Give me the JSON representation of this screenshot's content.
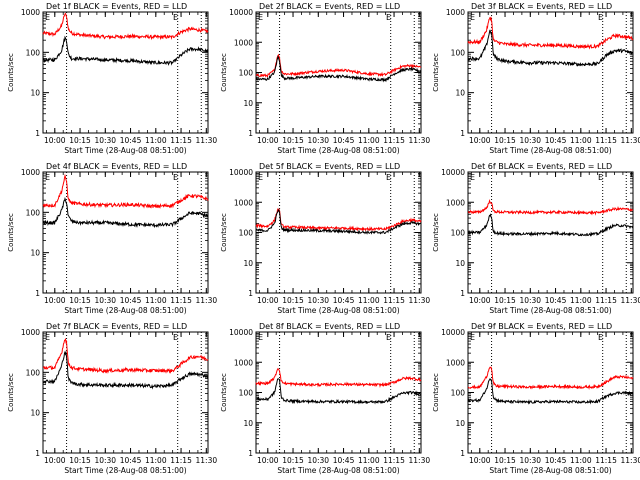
{
  "figure": {
    "xlabel": "Start Time (28-Aug-08 08:51:00)",
    "ylabel": "Counts/sec",
    "markers": [
      "E",
      "E"
    ],
    "colors": {
      "events": "#000000",
      "lld": "#ff0000",
      "background": "#ffffff",
      "axes": "#000000"
    }
  },
  "chart_data": [
    {
      "type": "line",
      "title": "Det 1f BLACK = Events, RED = LLD",
      "ylim": [
        1,
        1000
      ],
      "ylog": true,
      "xlim": [
        "09:53",
        "11:31"
      ],
      "xticks": [
        "10:00",
        "10:15",
        "10:30",
        "10:45",
        "11:00",
        "11:15",
        "11:30"
      ],
      "yticks": [
        "1",
        "10",
        "100",
        "1000"
      ],
      "vlines": [
        "10:07",
        "11:13",
        "11:27"
      ],
      "series": [
        {
          "name": "LLD",
          "color": "#ff0000",
          "x": [
            "09:53",
            "10:00",
            "10:04",
            "10:06",
            "10:07",
            "10:08",
            "10:10",
            "10:15",
            "10:30",
            "10:45",
            "11:00",
            "11:10",
            "11:15",
            "11:20",
            "11:25",
            "11:31"
          ],
          "values": [
            300,
            280,
            450,
            900,
            800,
            380,
            300,
            270,
            240,
            250,
            240,
            240,
            320,
            380,
            360,
            330
          ]
        },
        {
          "name": "Events",
          "color": "#000000",
          "x": [
            "09:53",
            "10:00",
            "10:04",
            "10:06",
            "10:07",
            "10:08",
            "10:10",
            "10:15",
            "10:30",
            "10:45",
            "11:00",
            "11:10",
            "11:15",
            "11:20",
            "11:25",
            "11:31"
          ],
          "values": [
            65,
            65,
            110,
            230,
            200,
            90,
            70,
            70,
            65,
            62,
            55,
            55,
            85,
            120,
            120,
            105
          ]
        }
      ]
    },
    {
      "type": "line",
      "title": "Det 2f BLACK = Events, RED = LLD",
      "ylim": [
        1,
        10000
      ],
      "ylog": true,
      "xlim": [
        "09:53",
        "11:31"
      ],
      "xticks": [
        "10:00",
        "10:15",
        "10:30",
        "10:45",
        "11:00",
        "11:15",
        "11:30"
      ],
      "yticks": [
        "1",
        "10",
        "100",
        "1000",
        "10000"
      ],
      "vlines": [
        "10:07",
        "11:13",
        "11:27"
      ],
      "series": [
        {
          "name": "LLD",
          "color": "#ff0000",
          "x": [
            "09:53",
            "10:00",
            "10:04",
            "10:06",
            "10:07",
            "10:08",
            "10:10",
            "10:15",
            "10:30",
            "10:45",
            "11:00",
            "11:10",
            "11:15",
            "11:20",
            "11:25",
            "11:31"
          ],
          "values": [
            80,
            80,
            120,
            400,
            300,
            110,
            90,
            90,
            110,
            120,
            90,
            85,
            120,
            160,
            170,
            150
          ]
        },
        {
          "name": "Events",
          "color": "#000000",
          "x": [
            "09:53",
            "10:00",
            "10:04",
            "10:06",
            "10:07",
            "10:08",
            "10:10",
            "10:15",
            "10:30",
            "10:45",
            "11:00",
            "11:10",
            "11:15",
            "11:20",
            "11:25",
            "11:31"
          ],
          "values": [
            60,
            60,
            100,
            330,
            250,
            80,
            65,
            65,
            75,
            75,
            60,
            58,
            90,
            120,
            130,
            110
          ]
        }
      ]
    },
    {
      "type": "line",
      "title": "Det 3f BLACK = Events, RED = LLD",
      "ylim": [
        1,
        1000
      ],
      "ylog": true,
      "xlim": [
        "09:53",
        "11:31"
      ],
      "xticks": [
        "10:00",
        "10:15",
        "10:30",
        "10:45",
        "11:00",
        "11:15",
        "11:30"
      ],
      "yticks": [
        "1",
        "10",
        "100",
        "1000"
      ],
      "vlines": [
        "10:07",
        "11:13",
        "11:27"
      ],
      "series": [
        {
          "name": "LLD",
          "color": "#ff0000",
          "x": [
            "09:53",
            "10:00",
            "10:04",
            "10:06",
            "10:07",
            "10:08",
            "10:10",
            "10:15",
            "10:30",
            "10:45",
            "11:00",
            "11:10",
            "11:15",
            "11:20",
            "11:25",
            "11:31"
          ],
          "values": [
            180,
            180,
            350,
            750,
            650,
            200,
            180,
            160,
            150,
            150,
            140,
            140,
            200,
            260,
            250,
            220
          ]
        },
        {
          "name": "Events",
          "color": "#000000",
          "x": [
            "09:53",
            "10:00",
            "10:04",
            "10:06",
            "10:07",
            "10:08",
            "10:10",
            "10:15",
            "10:30",
            "10:45",
            "11:00",
            "11:10",
            "11:15",
            "11:20",
            "11:25",
            "11:31"
          ],
          "values": [
            70,
            70,
            150,
            350,
            300,
            90,
            70,
            60,
            55,
            55,
            50,
            52,
            85,
            110,
            110,
            95
          ]
        }
      ]
    },
    {
      "type": "line",
      "title": "Det 4f BLACK = Events, RED = LLD",
      "ylim": [
        1,
        1000
      ],
      "ylog": true,
      "xlim": [
        "09:53",
        "11:31"
      ],
      "xticks": [
        "10:00",
        "10:15",
        "10:30",
        "10:45",
        "11:00",
        "11:15",
        "11:30"
      ],
      "yticks": [
        "1",
        "10",
        "100",
        "1000"
      ],
      "vlines": [
        "10:07",
        "11:13",
        "11:27"
      ],
      "series": [
        {
          "name": "LLD",
          "color": "#ff0000",
          "x": [
            "09:53",
            "10:00",
            "10:04",
            "10:06",
            "10:07",
            "10:08",
            "10:10",
            "10:15",
            "10:30",
            "10:45",
            "11:00",
            "11:10",
            "11:15",
            "11:20",
            "11:25",
            "11:31"
          ],
          "values": [
            150,
            150,
            330,
            750,
            600,
            210,
            170,
            160,
            150,
            155,
            140,
            150,
            200,
            260,
            250,
            210
          ]
        },
        {
          "name": "Events",
          "color": "#000000",
          "x": [
            "09:53",
            "10:00",
            "10:04",
            "10:06",
            "10:07",
            "10:08",
            "10:10",
            "10:15",
            "10:30",
            "10:45",
            "11:00",
            "11:10",
            "11:15",
            "11:20",
            "11:25",
            "11:31"
          ],
          "values": [
            55,
            55,
            110,
            210,
            180,
            80,
            60,
            55,
            55,
            50,
            48,
            50,
            70,
            95,
            95,
            80
          ]
        }
      ]
    },
    {
      "type": "line",
      "title": "Det 5f BLACK = Events, RED = LLD",
      "ylim": [
        1,
        10000
      ],
      "ylog": true,
      "xlim": [
        "09:53",
        "11:31"
      ],
      "xticks": [
        "10:00",
        "10:15",
        "10:30",
        "10:45",
        "11:00",
        "11:15",
        "11:30"
      ],
      "yticks": [
        "1",
        "10",
        "100",
        "1000",
        "10000"
      ],
      "vlines": [
        "10:07",
        "11:13",
        "11:27"
      ],
      "series": [
        {
          "name": "LLD",
          "color": "#ff0000",
          "x": [
            "09:53",
            "10:00",
            "10:04",
            "10:06",
            "10:07",
            "10:08",
            "10:10",
            "10:15",
            "10:30",
            "10:45",
            "11:00",
            "11:10",
            "11:15",
            "11:20",
            "11:25",
            "11:31"
          ],
          "values": [
            170,
            160,
            250,
            600,
            500,
            180,
            150,
            150,
            140,
            140,
            130,
            130,
            170,
            230,
            260,
            230
          ]
        },
        {
          "name": "Events",
          "color": "#000000",
          "x": [
            "09:53",
            "10:00",
            "10:04",
            "10:06",
            "10:07",
            "10:08",
            "10:10",
            "10:15",
            "10:30",
            "10:45",
            "11:00",
            "11:10",
            "11:15",
            "11:20",
            "11:25",
            "11:31"
          ],
          "values": [
            120,
            115,
            200,
            550,
            450,
            140,
            120,
            120,
            115,
            110,
            100,
            100,
            140,
            190,
            210,
            190
          ]
        }
      ]
    },
    {
      "type": "line",
      "title": "Det 6f BLACK = Events, RED = LLD",
      "ylim": [
        1,
        10000
      ],
      "ylog": true,
      "xlim": [
        "09:53",
        "11:31"
      ],
      "xticks": [
        "10:00",
        "10:15",
        "10:30",
        "10:45",
        "11:00",
        "11:15",
        "11:30"
      ],
      "yticks": [
        "1",
        "10",
        "100",
        "1000",
        "10000"
      ],
      "vlines": [
        "10:07",
        "11:13",
        "11:27"
      ],
      "series": [
        {
          "name": "LLD",
          "color": "#ff0000",
          "x": [
            "09:53",
            "10:00",
            "10:04",
            "10:06",
            "10:07",
            "10:08",
            "10:10",
            "10:15",
            "10:30",
            "10:45",
            "11:00",
            "11:10",
            "11:15",
            "11:20",
            "11:25",
            "11:31"
          ],
          "values": [
            480,
            470,
            650,
            1100,
            950,
            520,
            480,
            470,
            460,
            470,
            450,
            450,
            520,
            600,
            600,
            560
          ]
        },
        {
          "name": "Events",
          "color": "#000000",
          "x": [
            "09:53",
            "10:00",
            "10:04",
            "10:06",
            "10:07",
            "10:08",
            "10:10",
            "10:15",
            "10:30",
            "10:45",
            "11:00",
            "11:10",
            "11:15",
            "11:20",
            "11:25",
            "11:31"
          ],
          "values": [
            100,
            100,
            170,
            380,
            320,
            110,
            95,
            90,
            90,
            95,
            85,
            90,
            130,
            170,
            170,
            150
          ]
        }
      ]
    },
    {
      "type": "line",
      "title": "Det 7f BLACK = Events, RED = LLD",
      "ylim": [
        1,
        1000
      ],
      "ylog": true,
      "xlim": [
        "09:53",
        "11:31"
      ],
      "xticks": [
        "10:00",
        "10:15",
        "10:30",
        "10:45",
        "11:00",
        "11:15",
        "11:30"
      ],
      "yticks": [
        "1",
        "10",
        "100",
        "1000"
      ],
      "vlines": [
        "10:07",
        "11:13",
        "11:27"
      ],
      "series": [
        {
          "name": "LLD",
          "color": "#ff0000",
          "x": [
            "09:53",
            "10:00",
            "10:04",
            "10:06",
            "10:07",
            "10:08",
            "10:10",
            "10:15",
            "10:30",
            "10:45",
            "11:00",
            "11:10",
            "11:15",
            "11:20",
            "11:25",
            "11:31"
          ],
          "values": [
            130,
            130,
            300,
            700,
            550,
            170,
            130,
            120,
            110,
            115,
            110,
            110,
            160,
            230,
            250,
            210
          ]
        },
        {
          "name": "Events",
          "color": "#000000",
          "x": [
            "09:53",
            "10:00",
            "10:04",
            "10:06",
            "10:07",
            "10:08",
            "10:10",
            "10:15",
            "10:30",
            "10:45",
            "11:00",
            "11:10",
            "11:15",
            "11:20",
            "11:25",
            "11:31"
          ],
          "values": [
            60,
            60,
            140,
            330,
            260,
            70,
            55,
            50,
            48,
            48,
            45,
            48,
            70,
            90,
            90,
            80
          ]
        }
      ]
    },
    {
      "type": "line",
      "title": "Det 8f BLACK = Events, RED = LLD",
      "ylim": [
        1,
        10000
      ],
      "ylog": true,
      "xlim": [
        "09:53",
        "11:31"
      ],
      "xticks": [
        "10:00",
        "10:15",
        "10:30",
        "10:45",
        "11:00",
        "11:15",
        "11:30"
      ],
      "yticks": [
        "1",
        "10",
        "100",
        "1000",
        "10000"
      ],
      "vlines": [
        "10:07",
        "11:13",
        "11:27"
      ],
      "series": [
        {
          "name": "LLD",
          "color": "#ff0000",
          "x": [
            "09:53",
            "10:00",
            "10:04",
            "10:06",
            "10:07",
            "10:08",
            "10:10",
            "10:15",
            "10:30",
            "10:45",
            "11:00",
            "11:10",
            "11:15",
            "11:20",
            "11:25",
            "11:31"
          ],
          "values": [
            200,
            200,
            300,
            650,
            550,
            230,
            200,
            190,
            180,
            190,
            180,
            180,
            220,
            290,
            300,
            260
          ]
        },
        {
          "name": "Events",
          "color": "#000000",
          "x": [
            "09:53",
            "10:00",
            "10:04",
            "10:06",
            "10:07",
            "10:08",
            "10:10",
            "10:15",
            "10:30",
            "10:45",
            "11:00",
            "11:10",
            "11:15",
            "11:20",
            "11:25",
            "11:31"
          ],
          "values": [
            60,
            60,
            100,
            300,
            250,
            70,
            55,
            52,
            50,
            50,
            48,
            50,
            70,
            95,
            100,
            90
          ]
        }
      ]
    },
    {
      "type": "line",
      "title": "Det 9f BLACK = Events, RED = LLD",
      "ylim": [
        1,
        10000
      ],
      "ylog": true,
      "xlim": [
        "09:53",
        "11:31"
      ],
      "xticks": [
        "10:00",
        "10:15",
        "10:30",
        "10:45",
        "11:00",
        "11:15",
        "11:30"
      ],
      "yticks": [
        "1",
        "10",
        "100",
        "1000",
        "10000"
      ],
      "vlines": [
        "10:07",
        "11:13",
        "11:27"
      ],
      "series": [
        {
          "name": "LLD",
          "color": "#ff0000",
          "x": [
            "09:53",
            "10:00",
            "10:04",
            "10:06",
            "10:07",
            "10:08",
            "10:10",
            "10:15",
            "10:30",
            "10:45",
            "11:00",
            "11:10",
            "11:15",
            "11:20",
            "11:25",
            "11:31"
          ],
          "values": [
            150,
            150,
            330,
            750,
            620,
            200,
            160,
            160,
            150,
            160,
            150,
            155,
            220,
            320,
            330,
            290
          ]
        },
        {
          "name": "Events",
          "color": "#000000",
          "x": [
            "09:53",
            "10:00",
            "10:04",
            "10:06",
            "10:07",
            "10:08",
            "10:10",
            "10:15",
            "10:30",
            "10:45",
            "11:00",
            "11:10",
            "11:15",
            "11:20",
            "11:25",
            "11:31"
          ],
          "values": [
            55,
            55,
            130,
            300,
            260,
            70,
            55,
            50,
            48,
            50,
            48,
            50,
            75,
            95,
            100,
            90
          ]
        }
      ]
    }
  ]
}
